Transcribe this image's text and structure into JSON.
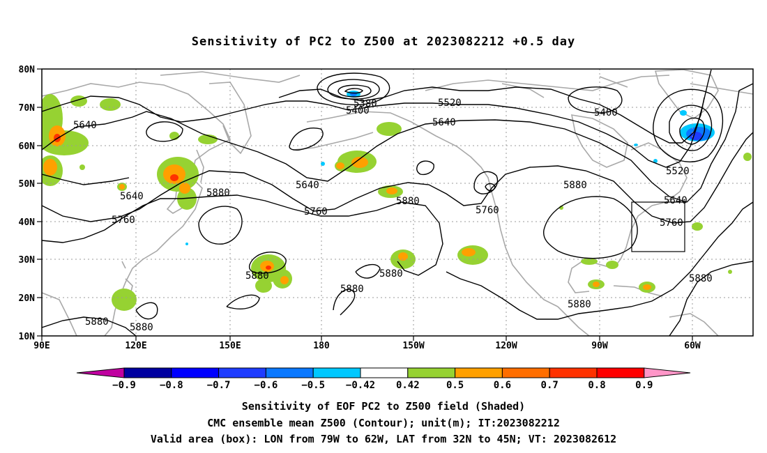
{
  "title": "Sensitivity of PC2 to Z500 at 2023082212 +0.5 day",
  "axes": {
    "lat_labels": [
      "80N",
      "70N",
      "60N",
      "50N",
      "40N",
      "30N",
      "20N",
      "10N"
    ],
    "lon_labels": [
      "90E",
      "120E",
      "150E",
      "180",
      "150W",
      "120W",
      "90W",
      "60W"
    ]
  },
  "contour_labels": [
    "5640",
    "5640",
    "5760",
    "5880",
    "5880",
    "5880",
    "5880",
    "5400",
    "5380",
    "5520",
    "5640",
    "5640",
    "5880",
    "5760",
    "5760",
    "5880",
    "5400",
    "5520",
    "5640",
    "5760",
    "5880",
    "5880",
    "5880",
    "5880"
  ],
  "colorbar": {
    "ticks": [
      "−0.9",
      "−0.8",
      "−0.7",
      "−0.6",
      "−0.5",
      "−0.42",
      "0.42",
      "0.5",
      "0.6",
      "0.7",
      "0.8",
      "0.9"
    ],
    "colors": [
      "#0000a0",
      "#0000ff",
      "#1e3cff",
      "#0a78ff",
      "#00c8ff",
      "#ffffff",
      "#96d232",
      "#ffa000",
      "#ff6e00",
      "#ff3200",
      "#ff0000"
    ],
    "under_color": "#c000a0",
    "over_color": "#ff96c8"
  },
  "captions": {
    "line1": "Sensitivity of EOF PC2 to Z500 field (Shaded)",
    "line2": "CMC ensemble mean Z500 (Contour); unit(m); IT:2023082212",
    "line3": "Valid area (box): LON from 79W to 62W, LAT from 32N to 45N; VT: 2023082612"
  }
}
